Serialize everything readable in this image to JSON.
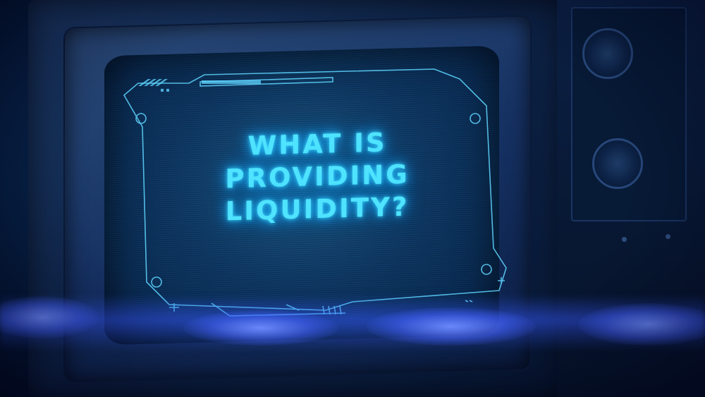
{
  "screen": {
    "title_lines": [
      "WHAT IS",
      "PROVIDING",
      "LIQUIDITY?"
    ]
  },
  "colors": {
    "text_glow": "#4fe3ff",
    "hud_line": "#5fd6ff",
    "light_band": "#3a5cff",
    "background": "#061a3a"
  }
}
